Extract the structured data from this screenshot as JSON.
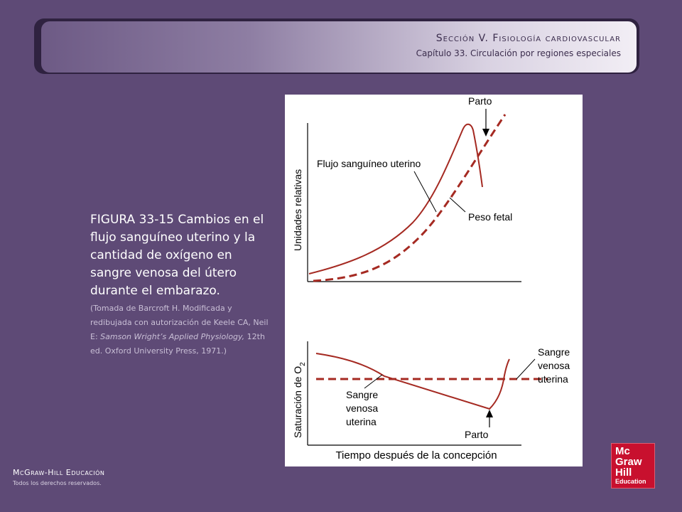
{
  "header": {
    "section": "Sección V.  Fisiología cardiovascular",
    "chapter": "Capítulo 33.  Circulación por regiones especiales"
  },
  "caption": {
    "main": "FIGURA 33-15 Cambios en el flujo sanguíneo uterino y la cantidad de oxígeno en sangre venosa del útero durante el embarazo.",
    "note_prefix": "(Tomada de Barcroft H. Modificada y redibujada con autorización de Keele CA, Neil E: ",
    "note_italic": "Samson Wright’s Applied Physiology,",
    "note_suffix": " 12th ed. Oxford University Press, 1971.)"
  },
  "figure": {
    "top_ylabel": "Unidades relativas",
    "top_series_flow": "Flujo sanguíneo uterino",
    "top_series_weight": "Peso fetal",
    "top_event": "Parto",
    "bottom_ylabel_main": "Saturación de O",
    "bottom_ylabel_sub": "2",
    "bottom_label_right_1": "Sangre",
    "bottom_label_right_2": "venosa",
    "bottom_label_right_3": "uterina",
    "bottom_label_left_1": "Sangre",
    "bottom_label_left_2": "venosa",
    "bottom_label_left_3": "uterina",
    "bottom_event": "Parto",
    "xlabel": "Tiempo después de la concepción",
    "line_color": "#a52a22"
  },
  "footer": {
    "company": "McGraw-Hill Educación",
    "rights": "Todos los derechos reservados."
  },
  "logo": {
    "line1": "Mc",
    "line2": "Graw",
    "line3": "Hill",
    "line4": "Education"
  }
}
